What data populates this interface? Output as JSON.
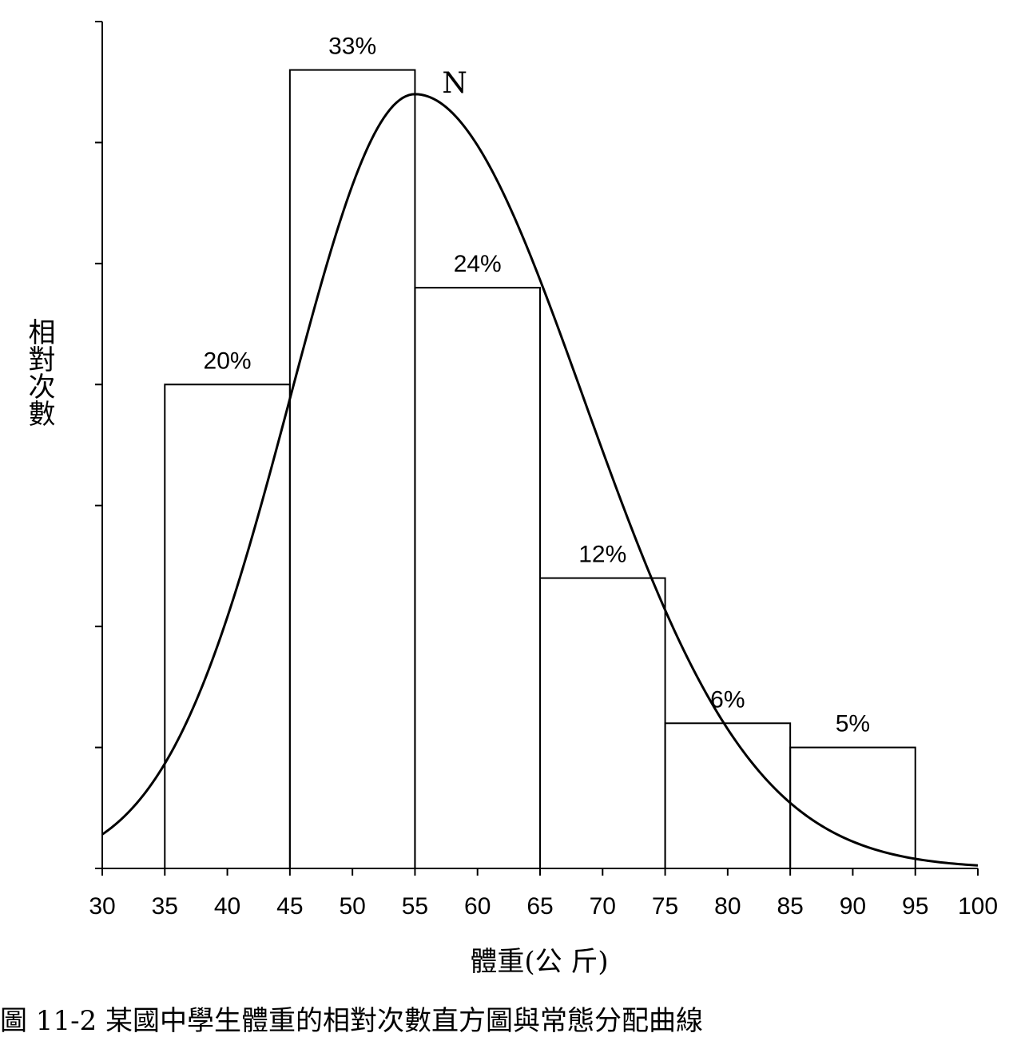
{
  "chart_data": {
    "type": "bar",
    "histogram": true,
    "bins": [
      {
        "from": 35,
        "to": 45,
        "value": 20,
        "label": "20%"
      },
      {
        "from": 45,
        "to": 55,
        "value": 33,
        "label": "33%"
      },
      {
        "from": 55,
        "to": 65,
        "value": 24,
        "label": "24%"
      },
      {
        "from": 65,
        "to": 75,
        "value": 12,
        "label": "12%"
      },
      {
        "from": 75,
        "to": 85,
        "value": 6,
        "label": "6%"
      },
      {
        "from": 85,
        "to": 95,
        "value": 5,
        "label": "5%"
      }
    ],
    "curve": {
      "label": "N",
      "type": "normal-density",
      "peak_x": 55,
      "peak_value": 32,
      "sigma_left": 10,
      "sigma_right": 13.5
    },
    "xlabel": "體重(公 斤)",
    "ylabel": "相對次數",
    "xticks": [
      30,
      35,
      40,
      45,
      50,
      55,
      60,
      65,
      70,
      75,
      80,
      85,
      90,
      95,
      100
    ],
    "xlim": [
      30,
      100
    ],
    "ylim": [
      0,
      35
    ],
    "y_tick_step": 5,
    "y_tick_labels_shown": false,
    "grid": false
  },
  "caption": "圖 11-2 某國中學生體重的相對次數直方圖與常態分配曲線"
}
